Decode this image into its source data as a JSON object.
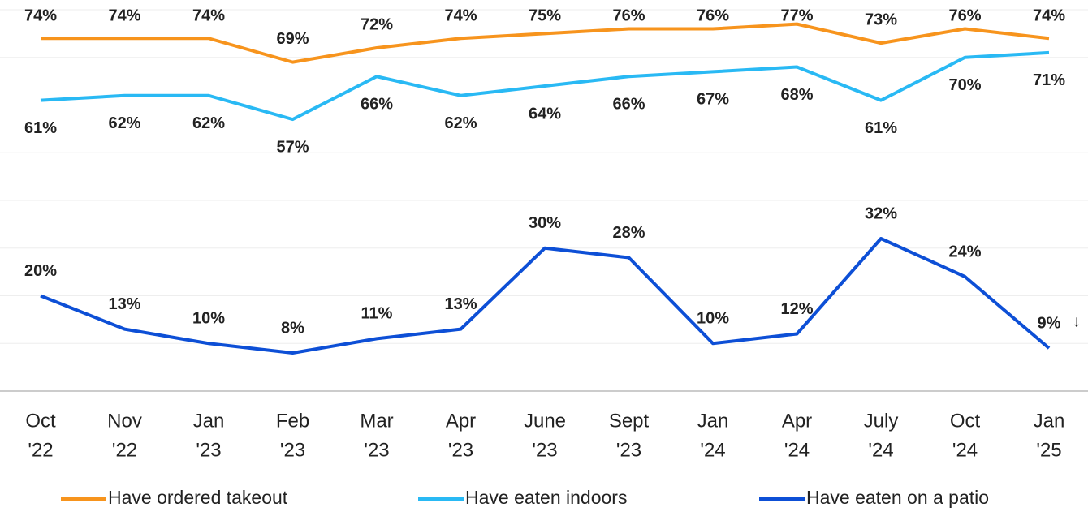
{
  "chart_data": {
    "type": "line",
    "categories": [
      [
        "Oct",
        "'22"
      ],
      [
        "Nov",
        "'22"
      ],
      [
        "Jan",
        "'23"
      ],
      [
        "Feb",
        "'23"
      ],
      [
        "Mar",
        "'23"
      ],
      [
        "Apr",
        "'23"
      ],
      [
        "June",
        "'23"
      ],
      [
        "Sept",
        "'23"
      ],
      [
        "Jan",
        "'24"
      ],
      [
        "Apr",
        "'24"
      ],
      [
        "July",
        "'24"
      ],
      [
        "Oct",
        "'24"
      ],
      [
        "Jan",
        "'25"
      ]
    ],
    "series": [
      {
        "name": "Have ordered takeout",
        "color": "#f7941d",
        "values": [
          74,
          74,
          74,
          69,
          72,
          74,
          75,
          76,
          76,
          77,
          73,
          76,
          74
        ],
        "value_labels": [
          "74%",
          "74%",
          "74%",
          "69%",
          "72%",
          "74%",
          "75%",
          "76%",
          "76%",
          "77%",
          "73%",
          "76%",
          "74%"
        ]
      },
      {
        "name": "Have eaten indoors",
        "color": "#29b9f4",
        "values": [
          61,
          62,
          62,
          57,
          66,
          62,
          64,
          66,
          67,
          68,
          61,
          70,
          71
        ],
        "value_labels": [
          "61%",
          "62%",
          "62%",
          "57%",
          "66%",
          "62%",
          "64%",
          "66%",
          "67%",
          "68%",
          "61%",
          "70%",
          "71%"
        ]
      },
      {
        "name": "Have eaten on a patio",
        "color": "#0d4fd6",
        "values": [
          20,
          13,
          10,
          8,
          11,
          13,
          30,
          28,
          10,
          12,
          32,
          24,
          9
        ],
        "value_labels": [
          "20%",
          "13%",
          "10%",
          "8%",
          "11%",
          "13%",
          "30%",
          "28%",
          "10%",
          "12%",
          "32%",
          "24%",
          "9%"
        ]
      }
    ],
    "annotations": [
      "↓"
    ],
    "ylim": [
      0,
      80
    ],
    "yticks": [
      0,
      10,
      20,
      30,
      40,
      50,
      60,
      70,
      80
    ],
    "grid": true,
    "legend": "bottom"
  }
}
